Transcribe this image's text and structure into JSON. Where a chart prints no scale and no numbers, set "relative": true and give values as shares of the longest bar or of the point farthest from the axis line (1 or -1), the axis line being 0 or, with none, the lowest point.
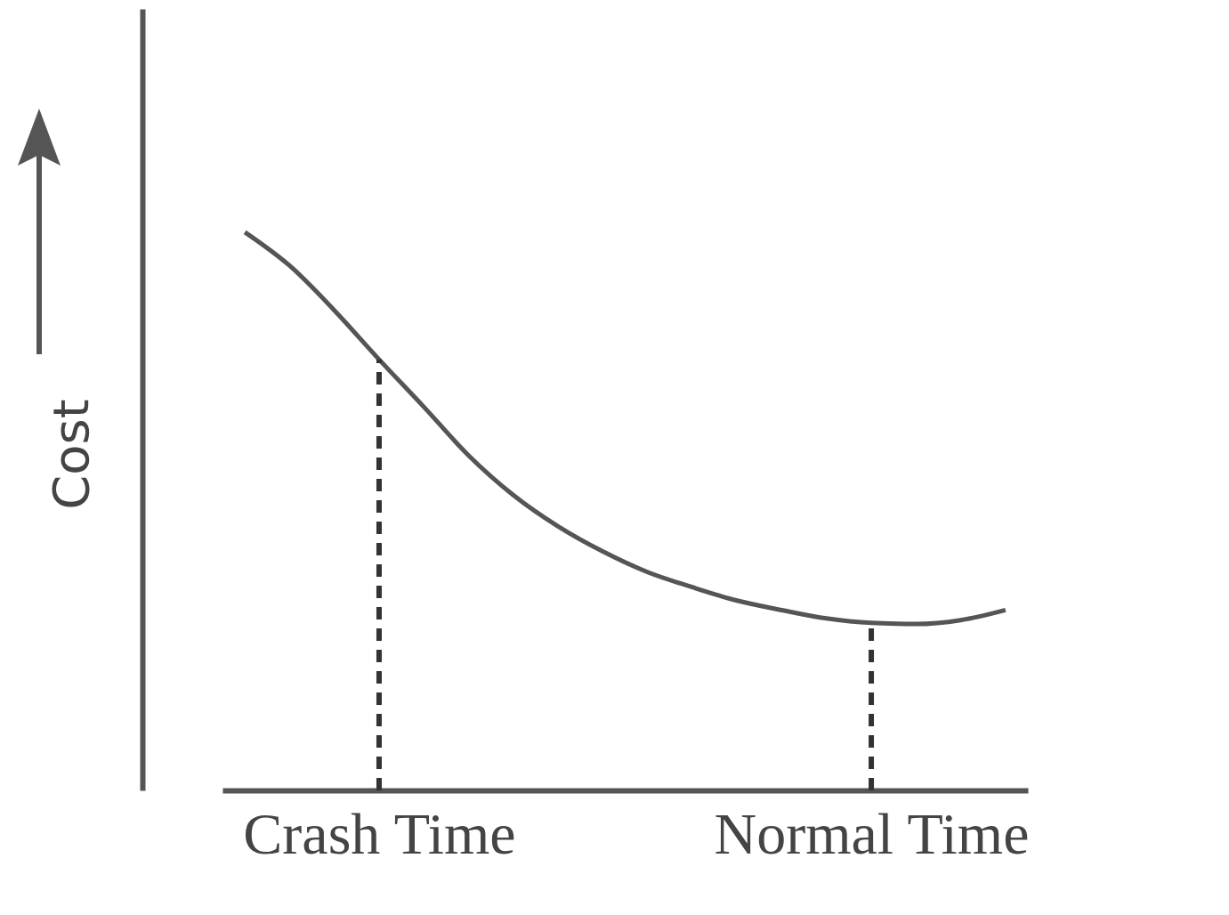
{
  "chart_data": {
    "type": "line",
    "relative": true,
    "ylabel": "Cost",
    "categories": [
      null,
      null,
      null,
      "Crash Time",
      null,
      null,
      null,
      null,
      null,
      null,
      null,
      null,
      null,
      null,
      "Normal Time",
      null,
      null,
      null
    ],
    "series": [
      {
        "color": "#555555",
        "values": [
          1.0,
          0.94,
          0.86,
          0.772,
          0.687,
          0.6,
          0.529,
          0.473,
          0.428,
          0.391,
          0.364,
          0.34,
          0.323,
          0.308,
          0.3,
          0.298,
          0.305,
          0.323
        ]
      }
    ],
    "ref_lines": [
      {
        "axis": "x",
        "value": "Crash Time",
        "line_style": "dashed",
        "color": "#333333"
      },
      {
        "axis": "x",
        "value": "Normal Time",
        "line_style": "dashed",
        "color": "#333333"
      }
    ],
    "grid": false,
    "marker": "none",
    "line_style": "solid"
  }
}
